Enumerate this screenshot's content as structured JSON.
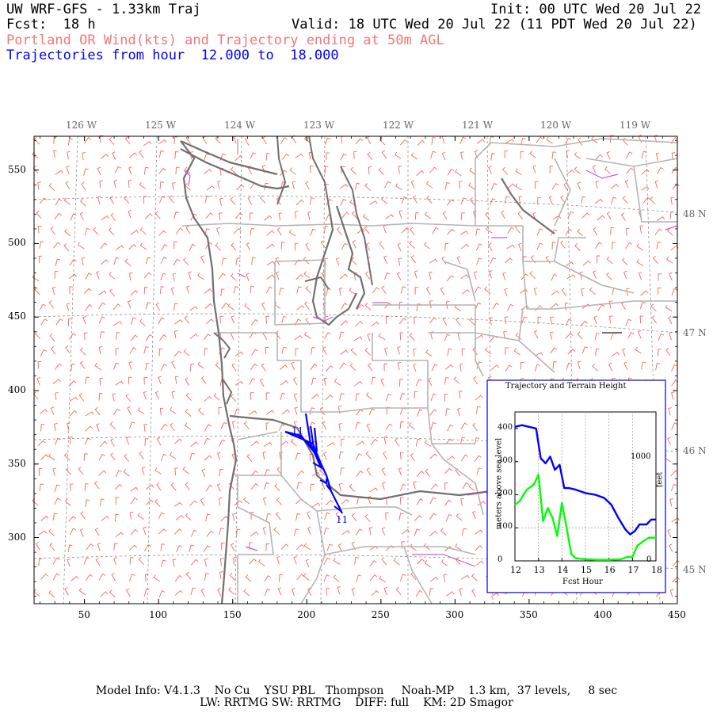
{
  "header": {
    "title_left": "UW WRF-GFS - 1.33km Traj",
    "init": "Init: 00 UTC Wed 20 Jul 22",
    "fcst": "Fcst:  18 h",
    "valid": "Valid: 18 UTC Wed 20 Jul 22 (11 PDT Wed 20 Jul 22)",
    "subtitle": "Portland OR Wind(kts) and Trajectory ending at 50m AGL",
    "traj_hours": "Trajectories from hour  12.000 to  18.000"
  },
  "map": {
    "x_ticks": [
      "50",
      "100",
      "150",
      "200",
      "250",
      "300",
      "350",
      "400",
      "450"
    ],
    "y_ticks": [
      "550",
      "500",
      "450",
      "400",
      "350",
      "300"
    ],
    "lon_labels": [
      "126 W",
      "125 W",
      "124 W",
      "123 W",
      "122 W",
      "121 W",
      "120 W",
      "119 W"
    ],
    "lat_labels": [
      "48 N",
      "47 N",
      "46 N",
      "45 N"
    ],
    "traj_label_start": "11",
    "traj_label_end": "11",
    "colors": {
      "wind_barb": "#ff6060",
      "coast": "#707070",
      "state_border": "#b4b4b4",
      "water_border": "#c060c0",
      "trajectory": "#0000ff",
      "grid": "#808080"
    }
  },
  "chart_data": {
    "type": "line",
    "title": "Trajectory and Terrain Height",
    "xlabel": "Fcst Hour",
    "ylabel": "meters above sea level",
    "ylabel_right": "feet",
    "xlim": [
      12,
      18
    ],
    "ylim": [
      0,
      450
    ],
    "x_ticks": [
      "12",
      "13",
      "14",
      "15",
      "16",
      "17",
      "18"
    ],
    "y_ticks": [
      "0",
      "100",
      "200",
      "300",
      "400"
    ],
    "right_ticks": [
      "0",
      "1000"
    ],
    "series": [
      {
        "color": "#0000ff",
        "x": [
          12.0,
          12.3,
          12.6,
          12.9,
          13.1,
          13.3,
          13.5,
          13.7,
          13.9,
          14.1,
          14.3,
          14.6,
          15.0,
          15.4,
          15.8,
          16.1,
          16.4,
          16.7,
          16.9,
          17.1,
          17.3,
          17.6,
          17.8,
          18.0
        ],
        "y": [
          405,
          410,
          405,
          400,
          310,
          295,
          315,
          275,
          290,
          220,
          220,
          215,
          205,
          200,
          190,
          170,
          130,
          95,
          80,
          90,
          110,
          110,
          125,
          125
        ]
      },
      {
        "color": "#00ff00",
        "x": [
          12.0,
          12.2,
          12.5,
          12.8,
          13.0,
          13.2,
          13.4,
          13.6,
          13.8,
          14.0,
          14.2,
          14.4,
          14.6,
          15.0,
          15.5,
          16.0,
          16.5,
          16.8,
          17.0,
          17.2,
          17.5,
          17.7,
          18.0
        ],
        "y": [
          170,
          180,
          215,
          230,
          260,
          120,
          160,
          130,
          75,
          175,
          100,
          20,
          8,
          5,
          3,
          3,
          5,
          12,
          12,
          45,
          62,
          70,
          70
        ]
      }
    ]
  },
  "footer": {
    "line1": "Model Info: V4.1.3    No Cu    YSU PBL   Thompson     Noah-MP    1.3 km,  37 levels,     8 sec",
    "line2": "LW: RRTMG SW: RRTMG    DIFF: full    KM: 2D Smagor"
  }
}
